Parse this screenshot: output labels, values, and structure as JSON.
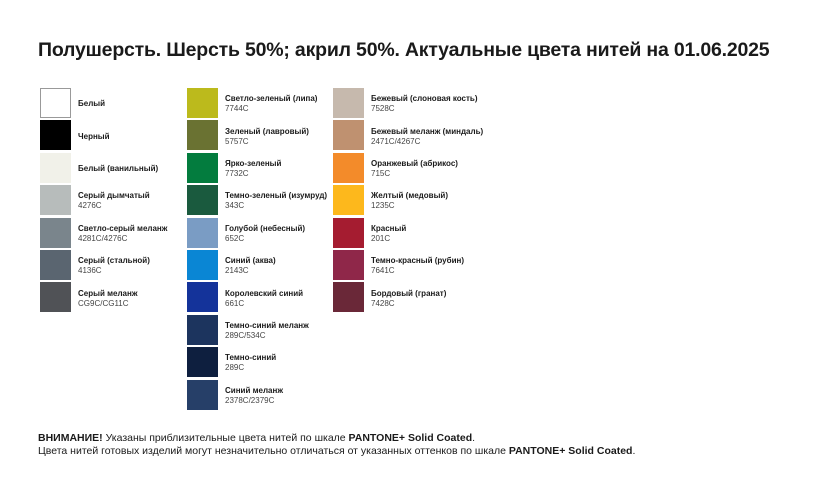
{
  "title": "Полушерсть. Шерсть 50%; акрил 50%. Актуальные цвета нитей на 01.06.2025",
  "columns": [
    [
      {
        "name": "Белый",
        "code": "",
        "color": "#ffffff"
      },
      {
        "name": "Черный",
        "code": "",
        "color": "#000000"
      },
      {
        "name": "Белый (ванильный)",
        "code": "",
        "color": "#f1f1e9"
      },
      {
        "name": "Серый дымчатый",
        "code": "4276C",
        "color": "#b7bcbb"
      },
      {
        "name": "Светло-серый меланж",
        "code": "4281C/4276C",
        "color": "#7a858c"
      },
      {
        "name": "Серый (стальной)",
        "code": "4136C",
        "color": "#5a6570"
      },
      {
        "name": "Серый меланж",
        "code": "CG9C/CG11C",
        "color": "#505256"
      }
    ],
    [
      {
        "name": "Светло-зеленый (липа)",
        "code": "7744C",
        "color": "#bcba1c"
      },
      {
        "name": "Зеленый (лавровый)",
        "code": "5757C",
        "color": "#6a7232"
      },
      {
        "name": "Ярко-зеленый",
        "code": "7732C",
        "color": "#037c3e"
      },
      {
        "name": "Темно-зеленый (изумруд)",
        "code": "343C",
        "color": "#1a5a3e"
      },
      {
        "name": "Голубой (небесный)",
        "code": "652C",
        "color": "#7a9cc4"
      },
      {
        "name": "Синий (аква)",
        "code": "2143C",
        "color": "#0a86d4"
      },
      {
        "name": "Королевский синий",
        "code": "661C",
        "color": "#14339a"
      },
      {
        "name": "Темно-синий меланж",
        "code": "289C/534C",
        "color": "#1c345e"
      },
      {
        "name": "Темно-синий",
        "code": "289C",
        "color": "#0e1f3f"
      },
      {
        "name": "Синий меланж",
        "code": "2378C/2379C",
        "color": "#263f68"
      }
    ],
    [
      {
        "name": "Бежевый (слоновая кость)",
        "code": "7528C",
        "color": "#c6b9ad"
      },
      {
        "name": "Бежевый меланж (миндаль)",
        "code": "2471C/4267C",
        "color": "#bf9170"
      },
      {
        "name": "Оранжевый (абрикос)",
        "code": "715C",
        "color": "#f38b2a"
      },
      {
        "name": "Желтый (медовый)",
        "code": "1235C",
        "color": "#fdb81c"
      },
      {
        "name": "Красный",
        "code": "201C",
        "color": "#a51c30"
      },
      {
        "name": "Темно-красный (рубин)",
        "code": "7641C",
        "color": "#8f2749"
      },
      {
        "name": "Бордовый (гранат)",
        "code": "7428C",
        "color": "#6a2838"
      }
    ]
  ],
  "footer": {
    "line1_bold": "ВНИМАНИЕ!",
    "line1_text": " Указаны приблизительные цвета нитей по шкале ",
    "line1_scale": "PANTONE+ Solid Coated",
    "line1_end": ".",
    "line2_text": "Цвета нитей готовых изделий могут незначительно отличаться от указанных оттенков по шкале ",
    "line2_scale": "PANTONE+ Solid Coated",
    "line2_end": "."
  }
}
